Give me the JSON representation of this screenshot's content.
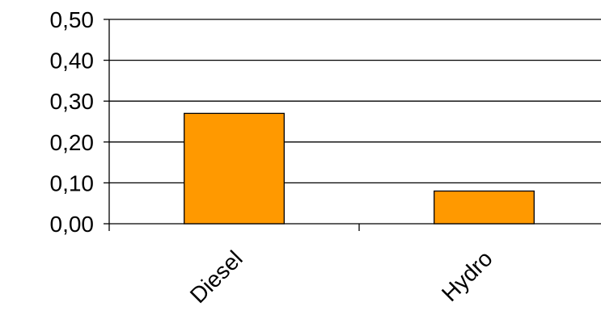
{
  "chart_data": {
    "type": "bar",
    "categories": [
      "Diesel",
      "Hydro"
    ],
    "values": [
      0.27,
      0.08
    ],
    "color": "#ff9900",
    "ylim": [
      0,
      0.5
    ],
    "yticks": [
      {
        "value": 0,
        "label": "0,00"
      },
      {
        "value": 0.1,
        "label": "0,10"
      },
      {
        "value": 0.2,
        "label": "0,20"
      },
      {
        "value": 0.3,
        "label": "0,30"
      },
      {
        "value": 0.4,
        "label": "0,40"
      },
      {
        "value": 0.5,
        "label": "0,50"
      }
    ],
    "grid": true
  }
}
